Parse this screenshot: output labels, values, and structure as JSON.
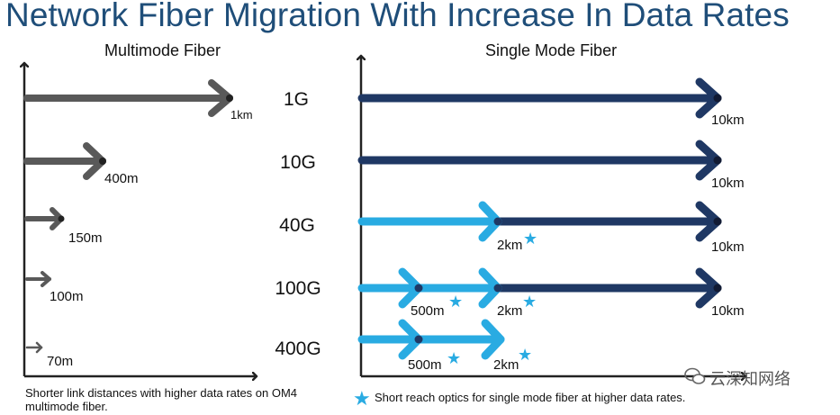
{
  "title": "Network Fiber Migration With Increase In Data Rates",
  "multimode": {
    "title": "Multimode Fiber",
    "distances": [
      "1km",
      "400m",
      "150m",
      "100m",
      "70m"
    ],
    "note": "Shorter link distances with higher data rates on OM4 multimode fiber."
  },
  "rates": [
    "1G",
    "10G",
    "40G",
    "100G",
    "400G"
  ],
  "singlemode": {
    "title": "Single Mode Fiber",
    "labels": {
      "r1_10km": "10km",
      "r2_10km": "10km",
      "r3_2km": "2km",
      "r3_10km": "10km",
      "r4_500m": "500m",
      "r4_2km": "2km",
      "r4_10km": "10km",
      "r5_500m": "500m",
      "r5_2km": "2km"
    },
    "legend_star": "★",
    "note": "Short reach optics for single mode fiber at higher data rates."
  },
  "star_glyph": "★",
  "watermark": "云深知网络",
  "colors": {
    "multimode_arrow": "#595959",
    "single_dark": "#1f3864",
    "single_light": "#29abe2",
    "title": "#1f4e79"
  }
}
